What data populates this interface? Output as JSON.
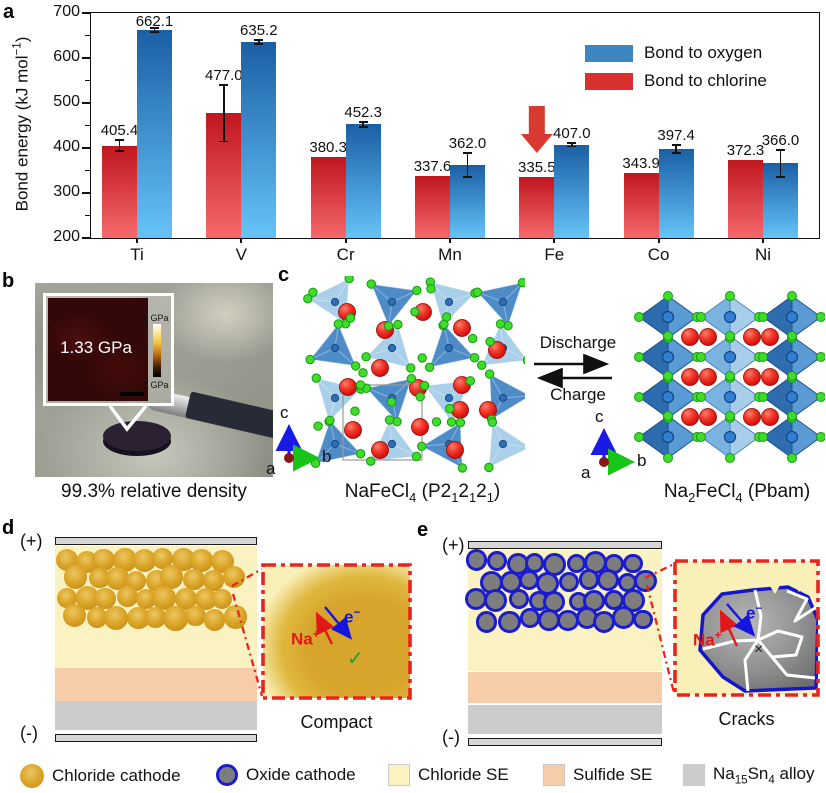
{
  "colors": {
    "bar_red_top": "#c0161f",
    "bar_red_bottom": "#f5696b",
    "bar_blue_top": "#1a5fa5",
    "bar_blue_bottom": "#66c3f7",
    "legend_blue": "#3c87c0",
    "legend_red": "#d6302f",
    "annotation_red": "#d93a30",
    "inset_border_red": "#e8251c",
    "chloride_se": "#faf3c1",
    "sulfide_se": "#f7cda9",
    "alloy_gray": "#cccccc",
    "electrode_gray": "#d6d6d6",
    "chloride_cathode_gold": "#d7a42c",
    "oxide_cathode_fill": "#7d7d7d",
    "oxide_cathode_border": "#1b1bd0",
    "na_red": "#e21717",
    "e_blue": "#1515e0",
    "check_green": "#18a332",
    "atom_red": "#e01212",
    "atom_green": "#3fdd28",
    "poly_blue_dark": "#2d6cae",
    "poly_blue_mid": "#4e8cc8",
    "poly_blue_light": "#a9cfe9",
    "axis_blue": "#1a1ae6",
    "axis_green": "#19c419",
    "axis_origin": "#8b1414"
  },
  "panel_a": {
    "label": "a",
    "legend": [
      {
        "label": "Bond to oxygen",
        "color": "#3c87c0"
      },
      {
        "label": "Bond to chlorine",
        "color": "#d6302f"
      }
    ],
    "chart_data": {
      "type": "bar",
      "categories": [
        "Ti",
        "V",
        "Cr",
        "Mn",
        "Fe",
        "Co",
        "Ni"
      ],
      "series": [
        {
          "name": "Bond to chlorine",
          "position": "left",
          "color_top": "#c0161f",
          "color_bottom": "#f5696b",
          "values": [
            405.4,
            477.0,
            380.3,
            337.6,
            335.5,
            343.9,
            372.3
          ],
          "errors": [
            13,
            63,
            0,
            0,
            0,
            0,
            0
          ]
        },
        {
          "name": "Bond to oxygen",
          "position": "right",
          "color_top": "#1a5fa5",
          "color_bottom": "#66c3f7",
          "values": [
            662.1,
            635.2,
            452.3,
            362.0,
            407.0,
            397.4,
            366.0
          ],
          "errors": [
            4,
            4,
            5,
            26,
            4,
            9,
            30
          ]
        }
      ],
      "title": "",
      "xlabel": "",
      "ylabel": "Bond energy (kJ mol⁻¹)",
      "ylabel_rich": [
        {
          "t": "Bond energy (kJ mol"
        },
        {
          "t": "−1",
          "s": "sup"
        },
        {
          "t": ")"
        }
      ],
      "ylim": [
        200,
        700
      ],
      "yticks": [
        200,
        300,
        400,
        500,
        600,
        700
      ],
      "yminor": [
        250,
        350,
        450,
        550,
        650
      ],
      "grid": false,
      "legend_position": "upper right",
      "annotation": "red down arrow above Fe chlorine bar"
    }
  },
  "panel_b": {
    "label": "b",
    "inset_value": "1.33 GPa",
    "scale_top": "5 GPa",
    "scale_bottom": "0 GPa",
    "caption": "99.3% relative density"
  },
  "panel_c": {
    "label": "c",
    "discharge": "Discharge",
    "charge": "Charge",
    "axis": {
      "a": "a",
      "b": "b",
      "c": "c"
    },
    "left_caption_rich": [
      {
        "t": "NaFeCl"
      },
      {
        "t": "4",
        "s": "sub"
      },
      {
        "t": " (P2"
      },
      {
        "t": "1",
        "s": "sub"
      },
      {
        "t": "2"
      },
      {
        "t": "1",
        "s": "sub"
      },
      {
        "t": "2"
      },
      {
        "t": "1",
        "s": "sub"
      },
      {
        "t": ")"
      }
    ],
    "right_caption_rich": [
      {
        "t": "Na"
      },
      {
        "t": "2",
        "s": "sub"
      },
      {
        "t": "FeCl"
      },
      {
        "t": "4",
        "s": "sub"
      },
      {
        "t": " (Pbam)"
      }
    ]
  },
  "panel_d": {
    "label": "d",
    "plus": "(+)",
    "minus": "(-)",
    "na_rich": [
      {
        "t": "Na"
      },
      {
        "t": "+",
        "s": "sup"
      }
    ],
    "e_rich": [
      {
        "t": "e"
      },
      {
        "t": "−",
        "s": "sup"
      }
    ],
    "check": "✓",
    "caption": "Compact"
  },
  "panel_e": {
    "label": "e",
    "plus": "(+)",
    "minus": "(-)",
    "na_rich": [
      {
        "t": "Na"
      },
      {
        "t": "+",
        "s": "sup"
      }
    ],
    "e_rich": [
      {
        "t": "e"
      },
      {
        "t": "−",
        "s": "sup"
      }
    ],
    "cross": "×",
    "caption": "Cracks"
  },
  "legend_row": {
    "items": [
      {
        "label": "Chloride cathode",
        "swatch": "gold-circle",
        "color": "#d7a42c"
      },
      {
        "label": "Oxide cathode",
        "swatch": "gray-blue-circle",
        "color": "#7d7d7d"
      },
      {
        "label": "Chloride SE",
        "swatch": "square",
        "color": "#faf3c1"
      },
      {
        "label": "Sulfide SE",
        "swatch": "square",
        "color": "#f7cda9"
      },
      {
        "label_rich": [
          {
            "t": "Na"
          },
          {
            "t": "15",
            "s": "sub"
          },
          {
            "t": "Sn"
          },
          {
            "t": "4",
            "s": "sub"
          },
          {
            "t": " alloy"
          }
        ],
        "swatch": "square",
        "color": "#cccccc"
      }
    ]
  }
}
